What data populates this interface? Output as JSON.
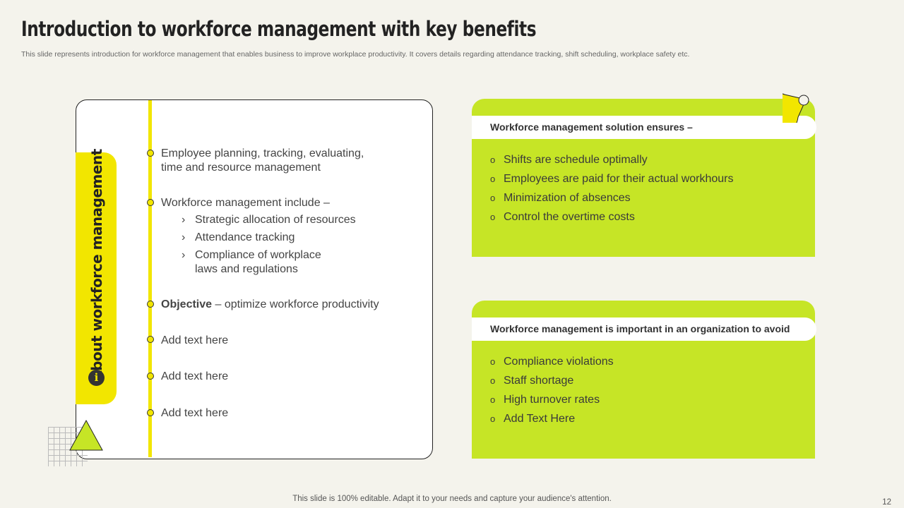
{
  "title": "Introduction to workforce management with key benefits",
  "subtitle": "This slide represents introduction for workforce management that enables business to improve workplace productivity. It covers details regarding attendance tracking, shift scheduling, workplace safety etc.",
  "left": {
    "tab_label": "About workforce management",
    "icon": "info-icon",
    "items": [
      {
        "line1": "Employee planning, tracking, evaluating,",
        "line2": "time and resource management"
      },
      {
        "text": "Workforce management include –"
      },
      {
        "bold": "Objective",
        "text": " – optimize workforce productivity"
      },
      {
        "text": "Add text here"
      },
      {
        "text": "Add text here"
      },
      {
        "text": "Add text here"
      }
    ],
    "subitems": [
      {
        "bullet": "›",
        "line1": "Strategic allocation of resources"
      },
      {
        "bullet": "›",
        "line1": "Attendance tracking"
      },
      {
        "bullet": "›",
        "line1": "Compliance of workplace",
        "line2": "laws and regulations"
      }
    ]
  },
  "right": {
    "box1": {
      "header": "Workforce management solution ensures –",
      "bullets": [
        "Shifts are schedule optimally",
        "Employees are paid for their actual workhours",
        "Minimization of absences",
        "Control the overtime costs"
      ]
    },
    "box2": {
      "header": "Workforce management is important in an organization to avoid",
      "bullets": [
        "Compliance violations",
        "Staff shortage",
        "High turnover  rates",
        "Add Text Here"
      ]
    },
    "bullet_glyph": "o"
  },
  "footer": "This slide is 100% editable. Adapt it to your needs and capture your audience's attention.",
  "page_number": "12",
  "colors": {
    "background": "#f4f3ec",
    "lime": "#c6e526",
    "yellow": "#f2e600"
  }
}
